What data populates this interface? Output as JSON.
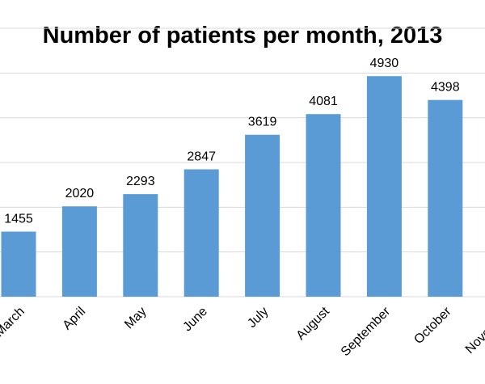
{
  "chart_data": {
    "type": "bar",
    "title": "Number of patients per month, 2013",
    "xlabel": "",
    "ylabel": "",
    "categories": [
      "March",
      "April",
      "May",
      "June",
      "July",
      "August",
      "September",
      "October",
      "November"
    ],
    "values": [
      1455,
      2020,
      2293,
      2847,
      3619,
      4081,
      4930,
      4398,
      null
    ],
    "ylim": [
      0,
      6000
    ],
    "grid": true,
    "legend": "none",
    "bar_color": "#5b9bd5",
    "gridline_color": "#d9d9d9"
  }
}
